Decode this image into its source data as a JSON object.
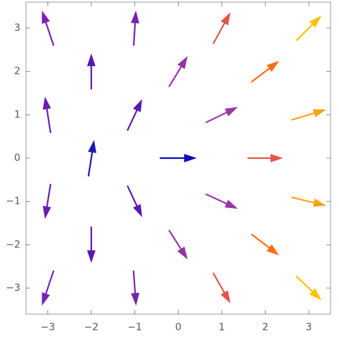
{
  "chart_data": {
    "type": "vector",
    "x": [
      -3,
      -3,
      -3,
      -3,
      -2,
      -2,
      -2,
      -1,
      -1,
      -1,
      -1,
      0,
      0,
      0,
      1,
      1,
      1,
      1,
      2,
      2,
      2,
      3,
      3,
      3,
      3
    ],
    "y": [
      3,
      1,
      -1,
      -3,
      2,
      0,
      -2,
      3,
      1,
      -1,
      -3,
      2,
      0,
      -2,
      3,
      1,
      -1,
      -3,
      2,
      0,
      -2,
      3,
      1,
      -1,
      -3
    ],
    "u": [
      -0.27,
      -0.13,
      -0.13,
      -0.27,
      0,
      0.13,
      0,
      0.05,
      0.34,
      0.34,
      0.06,
      0.43,
      0.85,
      0.43,
      0.4,
      0.74,
      0.74,
      0.4,
      0.64,
      0.82,
      0.64,
      0.58,
      0.8,
      0.8,
      0.58
    ],
    "v": [
      0.81,
      0.84,
      -0.81,
      -0.81,
      0.83,
      0.84,
      -0.84,
      0.81,
      0.73,
      -0.73,
      -0.81,
      0.71,
      0,
      -0.68,
      0.73,
      0.36,
      -0.34,
      -0.71,
      0.49,
      0,
      -0.49,
      0.58,
      0.24,
      -0.19,
      -0.55
    ],
    "colors": [
      "#7a20b8",
      "#6a1cb4",
      "#6a1cb4",
      "#7a20b8",
      "#5a16b2",
      "#1c18b0",
      "#5a16b2",
      "#7a22b0",
      "#5e18b2",
      "#5e18b2",
      "#7a22b0",
      "#9632a6",
      "#0c0cb0",
      "#9632a6",
      "#e2564a",
      "#9a38a6",
      "#9a38a6",
      "#e2564a",
      "#ff6c14",
      "#e2564a",
      "#ff6c14",
      "#ffc000",
      "#ffa214",
      "#ffa214",
      "#ffc000"
    ],
    "xlim": [
      -3.5,
      3.5
    ],
    "ylim": [
      -3.6,
      3.6
    ],
    "xticks": [
      {
        "value": -3,
        "label": "−3"
      },
      {
        "value": -2,
        "label": "−2"
      },
      {
        "value": -1,
        "label": "−1"
      },
      0,
      1,
      2,
      3
    ],
    "yticks": [
      {
        "value": -3,
        "label": "−3"
      },
      {
        "value": -2,
        "label": "−2"
      },
      {
        "value": -1,
        "label": "−1"
      },
      0,
      1,
      2,
      3
    ],
    "grid": false
  }
}
